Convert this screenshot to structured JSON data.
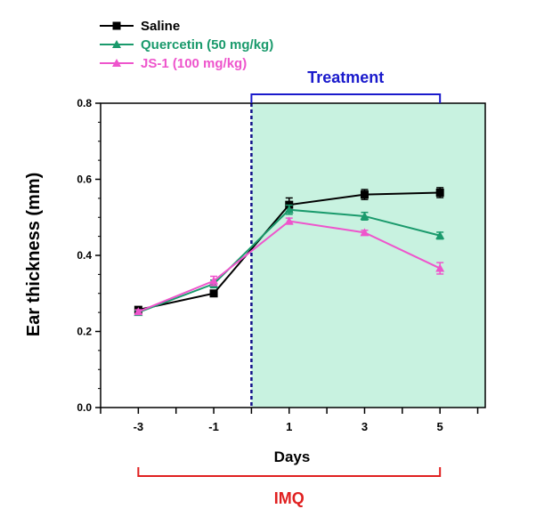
{
  "chart_data": {
    "type": "line",
    "title": "",
    "xlabel": "Days",
    "ylabel": "Ear thickness (mm)",
    "x_ticks": [
      "-3",
      "-1",
      "1",
      "3",
      "5"
    ],
    "x_values": [
      -3,
      -1,
      1,
      3,
      5
    ],
    "xlim": [
      -4,
      6.2
    ],
    "ylim": [
      0.0,
      0.8
    ],
    "y_ticks": [
      "0.0",
      "0.2",
      "0.4",
      "0.6",
      "0.8"
    ],
    "y_tick_values": [
      0.0,
      0.2,
      0.4,
      0.6,
      0.8
    ],
    "legend_position": "top-left",
    "series": [
      {
        "name": "Saline",
        "color": "#000000",
        "marker": "square",
        "values": [
          0.257,
          0.3,
          0.533,
          0.56,
          0.565
        ],
        "errors": [
          0.006,
          0.005,
          0.018,
          0.013,
          0.013
        ]
      },
      {
        "name": "Quercetin (50 mg/kg)",
        "color": "#1a9a6c",
        "marker": "triangle",
        "values": [
          0.25,
          0.325,
          0.52,
          0.503,
          0.452
        ],
        "errors": [
          0.005,
          0.01,
          0.012,
          0.01,
          0.009
        ]
      },
      {
        "name": "JS-1 (100 mg/kg)",
        "color": "#ee55cc",
        "marker": "triangle",
        "values": [
          0.252,
          0.333,
          0.49,
          0.46,
          0.366
        ],
        "errors": [
          0.005,
          0.012,
          0.008,
          0.006,
          0.015
        ]
      }
    ],
    "annotations": {
      "treatment_label": "Treatment",
      "treatment_color": "#1a1acc",
      "treatment_start": 0,
      "treatment_end": 5,
      "imq_label": "IMQ",
      "imq_color": "#e02020",
      "imq_start": -3,
      "imq_end": 5,
      "shade_start": 0,
      "shade_color": "#c8f2e0"
    }
  }
}
